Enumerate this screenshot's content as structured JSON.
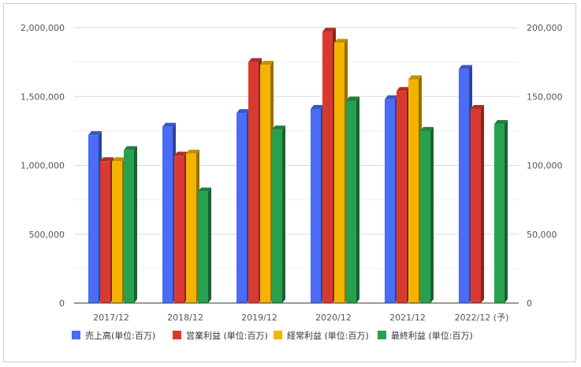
{
  "chart_data": {
    "type": "bar",
    "categories": [
      "2017/12",
      "2018/12",
      "2019/12",
      "2020/12",
      "2021/12",
      "2022/12 (予)"
    ],
    "series": [
      {
        "name": "売上高(単位:百万)",
        "axis": "left",
        "color": "#4a6cf7",
        "values": [
          1220000,
          1280000,
          1380000,
          1410000,
          1480000,
          1700000
        ]
      },
      {
        "name": "営業利益 (単位:百万)",
        "axis": "right",
        "color": "#d93a2f",
        "values": [
          103000,
          107000,
          175000,
          197000,
          154000,
          141000
        ]
      },
      {
        "name": "経常利益 (単位:百万)",
        "axis": "right",
        "color": "#f2b400",
        "values": [
          103000,
          108500,
          173000,
          189000,
          162500,
          null
        ]
      },
      {
        "name": "最終利益 (単位:百万)",
        "axis": "right",
        "color": "#27a04f",
        "values": [
          111000,
          81000,
          126000,
          147000,
          125000,
          130000
        ]
      }
    ],
    "y_left": {
      "min": 0,
      "max": 2000000,
      "ticks": [
        "0",
        "500,000",
        "1,000,000",
        "1,500,000",
        "2,000,000"
      ]
    },
    "y_right": {
      "min": 0,
      "max": 200000,
      "ticks": [
        "0",
        "50,000",
        "100,000",
        "150,000",
        "200,000"
      ]
    },
    "title": "",
    "xlabel": "",
    "ylabel": "",
    "grid": true,
    "legend_position": "bottom"
  }
}
